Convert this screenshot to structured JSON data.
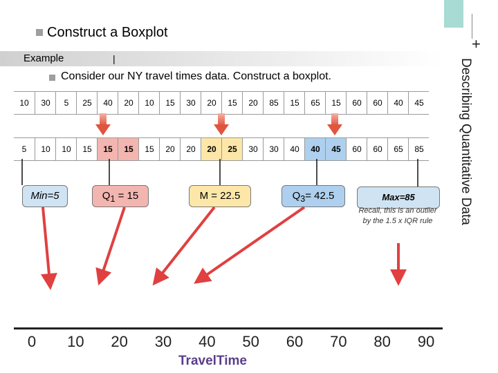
{
  "header": {
    "title": "Construct a Boxplot",
    "example_label": "Example",
    "example_divider": "|",
    "subtitle": "Consider our NY travel times data. Construct a boxplot."
  },
  "side_title": "Describing Quantitative Data",
  "side_plus": "+",
  "raw_data": [
    "10",
    "30",
    "5",
    "25",
    "40",
    "20",
    "10",
    "15",
    "30",
    "20",
    "15",
    "20",
    "85",
    "15",
    "65",
    "15",
    "60",
    "60",
    "40",
    "45"
  ],
  "sorted_data": [
    "5",
    "10",
    "10",
    "15",
    "15",
    "15",
    "15",
    "20",
    "20",
    "20",
    "25",
    "30",
    "30",
    "40",
    "40",
    "45",
    "60",
    "60",
    "65",
    "85"
  ],
  "stats": {
    "min": "Min=5",
    "q1": "Q",
    "q1_sub": "1",
    "q1_val": " = 15",
    "median": "M = 22.5",
    "q3": "Q",
    "q3_sub": "3",
    "q3_val": "= 42.5",
    "max": "Max=85",
    "note": "Recall, this is an outlier by the 1.5 x IQR rule"
  },
  "axis": {
    "ticks": [
      "0",
      "10",
      "20",
      "30",
      "40",
      "50",
      "60",
      "70",
      "80",
      "90"
    ],
    "title": "TravelTime"
  },
  "colors": {
    "q1_highlight": "#f3b5b0",
    "median_highlight": "#fde7a8",
    "q3_highlight": "#aed0ee",
    "arrow_red": "#e04040",
    "side_accent": "#a8dbd3"
  }
}
